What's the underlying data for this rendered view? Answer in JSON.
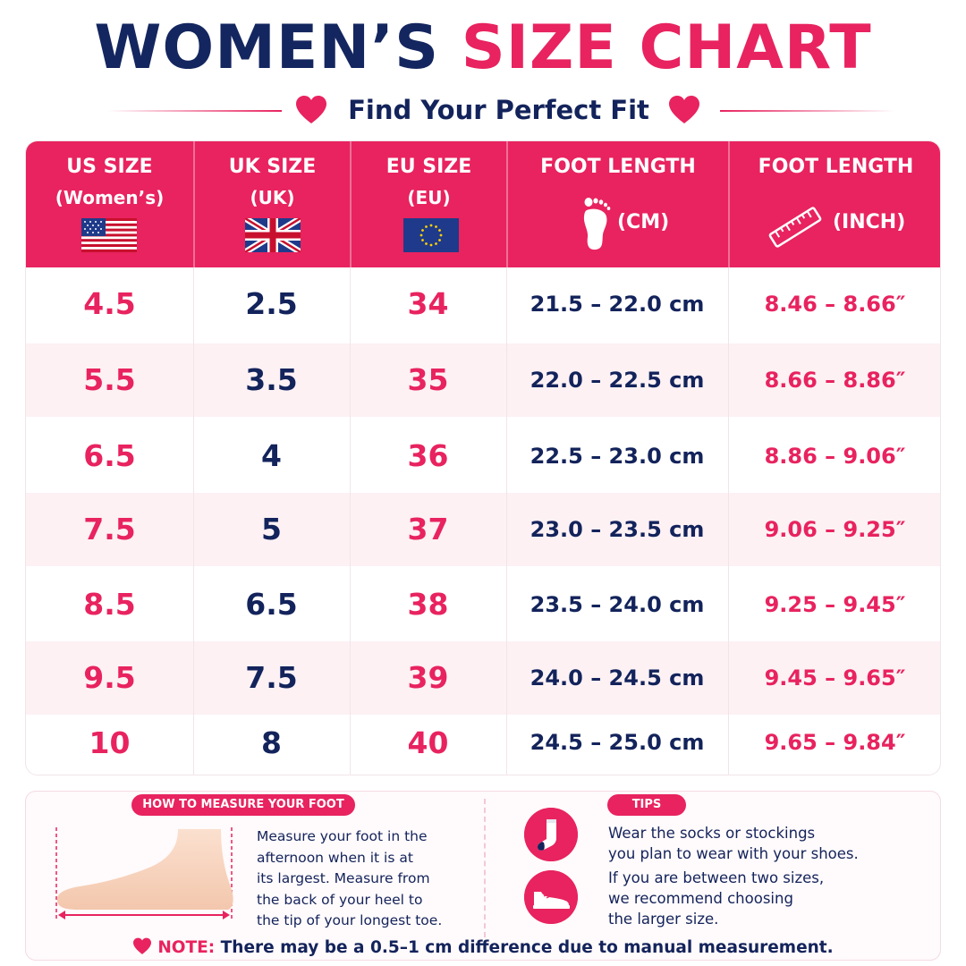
{
  "header": {
    "title_part1": "WOMEN’S",
    "title_part2": "SIZE CHART",
    "subtitle": "Find Your Perfect Fit"
  },
  "colors": {
    "accent": "#e8235f",
    "navy": "#13235b",
    "row_alt": "#fdf1f4"
  },
  "table": {
    "columns": [
      {
        "line1": "US SIZE",
        "line2": "(Women’s)",
        "icon": "us-flag-icon"
      },
      {
        "line1": "UK SIZE",
        "line2": "(UK)",
        "icon": "uk-flag-icon"
      },
      {
        "line1": "EU SIZE",
        "line2": "(EU)",
        "icon": "eu-flag-icon"
      },
      {
        "line1": "FOOT LENGTH",
        "unit": "(CM)",
        "icon": "footprint-icon"
      },
      {
        "line1": "FOOT LENGTH",
        "unit": "(INCH)",
        "icon": "ruler-icon"
      }
    ],
    "rows": [
      {
        "us": "4.5",
        "uk": "2.5",
        "eu": "34",
        "cm": "21.5 – 22.0 cm",
        "inch": "8.46 – 8.66″"
      },
      {
        "us": "5.5",
        "uk": "3.5",
        "eu": "35",
        "cm": "22.0 – 22.5 cm",
        "inch": "8.66 – 8.86″"
      },
      {
        "us": "6.5",
        "uk": "4",
        "eu": "36",
        "cm": "22.5 – 23.0 cm",
        "inch": "8.86 – 9.06″"
      },
      {
        "us": "7.5",
        "uk": "5",
        "eu": "37",
        "cm": "23.0 – 23.5 cm",
        "inch": "9.06 – 9.25″"
      },
      {
        "us": "8.5",
        "uk": "6.5",
        "eu": "38",
        "cm": "23.5 – 24.0 cm",
        "inch": "9.25 – 9.45″"
      },
      {
        "us": "9.5",
        "uk": "7.5",
        "eu": "39",
        "cm": "24.0 – 24.5 cm",
        "inch": "9.45 – 9.65″"
      },
      {
        "us": "10",
        "uk": "8",
        "eu": "40",
        "cm": "24.5 – 25.0 cm",
        "inch": "9.65 – 9.84″"
      }
    ]
  },
  "measure": {
    "label": "HOW TO MEASURE YOUR FOOT",
    "lines": [
      "Measure your foot in the",
      "afternoon when it is at",
      "its largest. Measure from",
      "the back of your heel to",
      "the tip of your longest toe."
    ],
    "icon": "foot-measure-icon"
  },
  "tips": {
    "label": "TIPS",
    "items": [
      {
        "icon": "sock-icon",
        "lines": [
          "Wear the socks or stockings",
          "you plan to wear with your shoes."
        ]
      },
      {
        "icon": "shoe-icon",
        "lines": [
          "If you are between two sizes,",
          "we recommend choosing",
          "the larger size."
        ]
      }
    ]
  },
  "note": {
    "label": "NOTE:",
    "text": "There may be a 0.5–1 cm difference due to manual measurement."
  }
}
